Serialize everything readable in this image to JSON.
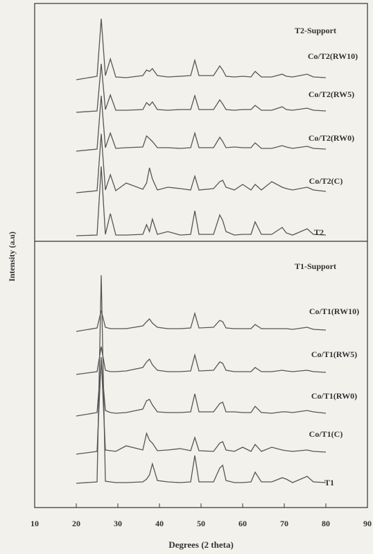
{
  "chart_data": [
    {
      "type": "line",
      "title": "T2-Support",
      "ylabel": "Intensity (a.u)",
      "x": [
        20,
        25,
        26,
        27,
        28.2,
        29.5,
        32,
        36,
        36.9,
        37.6,
        38.3,
        39.5,
        42,
        45,
        47.5,
        48.5,
        49.5,
        53,
        54.5,
        55.2,
        56,
        58,
        60,
        62,
        63,
        64.5,
        67,
        69.5,
        70.5,
        72,
        75.5,
        77,
        80
      ],
      "xlim": [
        10,
        90
      ],
      "color": "#555555",
      "series": [
        {
          "name": "Co/T2(RW10)",
          "values": [
            0,
            5,
            88,
            6,
            30,
            4,
            3,
            6,
            14,
            12,
            16,
            6,
            4,
            5,
            6,
            28,
            6,
            6,
            20,
            14,
            5,
            4,
            5,
            4,
            12,
            4,
            4,
            8,
            5,
            4,
            8,
            4,
            3
          ]
        },
        {
          "name": "Co/T2(RW5)",
          "values": [
            0,
            2,
            70,
            4,
            25,
            3,
            3,
            4,
            14,
            10,
            15,
            4,
            3,
            4,
            4,
            24,
            4,
            4,
            18,
            12,
            4,
            3,
            4,
            4,
            10,
            3,
            3,
            8,
            4,
            3,
            6,
            3,
            2
          ]
        },
        {
          "name": "Co/T2(RW0)",
          "values": [
            0,
            3,
            80,
            5,
            26,
            4,
            5,
            6,
            22,
            18,
            14,
            5,
            5,
            4,
            5,
            26,
            5,
            5,
            20,
            14,
            5,
            6,
            5,
            5,
            12,
            4,
            4,
            8,
            6,
            4,
            7,
            4,
            3
          ]
        },
        {
          "name": "Co/T2(C)",
          "values": [
            0,
            3,
            85,
            4,
            26,
            3,
            14,
            5,
            14,
            36,
            20,
            4,
            8,
            6,
            4,
            24,
            4,
            6,
            16,
            18,
            8,
            4,
            12,
            4,
            12,
            4,
            16,
            8,
            6,
            4,
            8,
            4,
            2
          ]
        },
        {
          "name": "T2",
          "values": [
            0,
            1,
            100,
            2,
            32,
            1,
            1,
            2,
            16,
            6,
            24,
            2,
            6,
            1,
            2,
            36,
            2,
            2,
            30,
            22,
            6,
            1,
            2,
            2,
            20,
            2,
            2,
            12,
            4,
            1,
            10,
            2,
            1
          ]
        }
      ]
    },
    {
      "type": "line",
      "title": "T1-Support",
      "xlabel": "Degrees (2 theta)",
      "x": [
        20,
        25,
        26,
        27,
        28.2,
        29.5,
        32,
        36,
        36.9,
        37.6,
        38.3,
        39.5,
        42,
        45,
        47.5,
        48.5,
        49.5,
        53,
        54.5,
        55.2,
        56,
        58,
        60,
        62,
        63,
        64.5,
        67,
        69.5,
        70.5,
        72,
        75.5,
        77,
        80
      ],
      "xlim": [
        10,
        90
      ],
      "xticks": [
        10,
        20,
        30,
        40,
        50,
        60,
        70,
        80,
        90
      ],
      "color": "#555555",
      "series": [
        {
          "name": "Co/T1(RW10)",
          "values": [
            0,
            5,
            30,
            6,
            4,
            4,
            4,
            8,
            14,
            18,
            12,
            6,
            4,
            4,
            5,
            26,
            5,
            6,
            16,
            14,
            5,
            4,
            4,
            4,
            10,
            4,
            4,
            4,
            4,
            3,
            6,
            3,
            2
          ]
        },
        {
          "name": "Co/T1(RW5)",
          "values": [
            0,
            4,
            40,
            6,
            4,
            4,
            5,
            10,
            18,
            22,
            14,
            6,
            4,
            4,
            5,
            28,
            5,
            6,
            18,
            16,
            6,
            4,
            4,
            4,
            10,
            4,
            4,
            6,
            5,
            4,
            6,
            4,
            3
          ]
        },
        {
          "name": "Co/T1(RW0)",
          "values": [
            0,
            5,
            80,
            8,
            5,
            4,
            5,
            10,
            22,
            24,
            16,
            6,
            5,
            5,
            6,
            32,
            6,
            6,
            18,
            20,
            6,
            6,
            5,
            5,
            14,
            5,
            4,
            6,
            6,
            5,
            8,
            6,
            4
          ]
        },
        {
          "name": "Co/T1(C)",
          "values": [
            0,
            4,
            140,
            6,
            5,
            4,
            12,
            6,
            30,
            20,
            16,
            5,
            6,
            8,
            5,
            24,
            5,
            4,
            16,
            18,
            6,
            4,
            10,
            4,
            14,
            4,
            10,
            6,
            5,
            4,
            6,
            4,
            3
          ]
        },
        {
          "name": "T1",
          "values": [
            0,
            2,
            300,
            3,
            2,
            1,
            1,
            2,
            6,
            12,
            28,
            4,
            2,
            1,
            2,
            40,
            2,
            2,
            22,
            26,
            4,
            1,
            1,
            2,
            16,
            2,
            2,
            8,
            6,
            1,
            10,
            2,
            1
          ]
        }
      ]
    }
  ]
}
